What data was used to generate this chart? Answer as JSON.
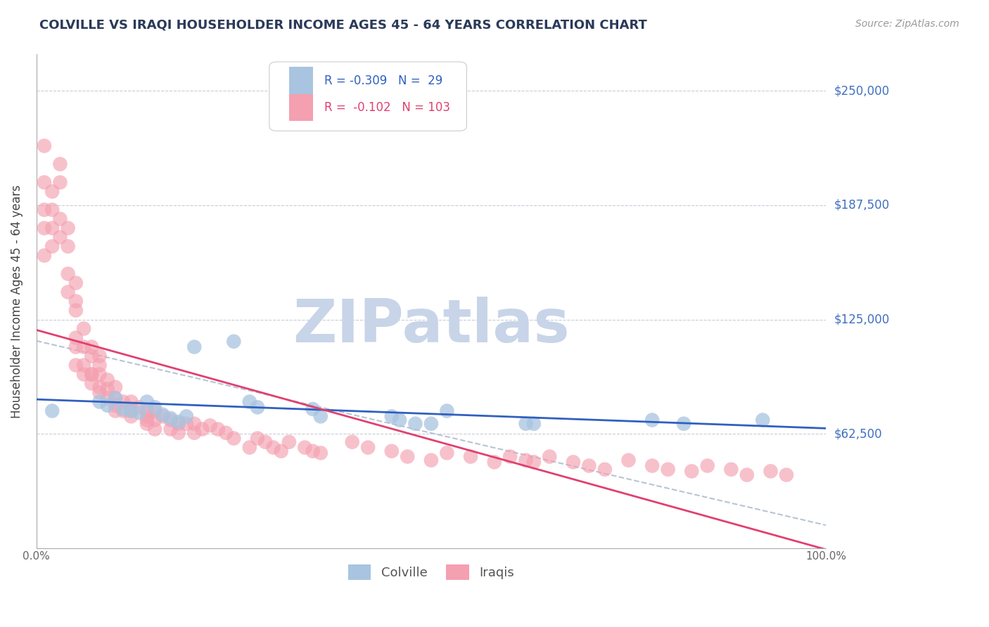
{
  "title": "COLVILLE VS IRAQI HOUSEHOLDER INCOME AGES 45 - 64 YEARS CORRELATION CHART",
  "source_text": "Source: ZipAtlas.com",
  "ylabel": "Householder Income Ages 45 - 64 years",
  "xlim": [
    0.0,
    1.0
  ],
  "ylim": [
    0,
    270000
  ],
  "yticks": [
    62500,
    125000,
    187500,
    250000
  ],
  "ytick_labels": [
    "$62,500",
    "$125,000",
    "$187,500",
    "$250,000"
  ],
  "xticks": [
    0.0,
    0.2,
    0.4,
    0.6,
    0.8,
    1.0
  ],
  "xtick_labels": [
    "0.0%",
    "",
    "",
    "",
    "",
    "100.0%"
  ],
  "colville_R": "-0.309",
  "colville_N": "29",
  "iraqi_R": "-0.102",
  "iraqi_N": "103",
  "colville_color": "#a8c4e0",
  "iraqi_color": "#f4a0b0",
  "colville_line_color": "#3060c0",
  "iraqi_line_color": "#e04070",
  "trend_line_color": "#b8c4d4",
  "watermark_color": "#c8d4e8",
  "colville_x": [
    0.02,
    0.08,
    0.09,
    0.1,
    0.11,
    0.12,
    0.13,
    0.14,
    0.15,
    0.16,
    0.17,
    0.18,
    0.19,
    0.2,
    0.25,
    0.27,
    0.28,
    0.35,
    0.36,
    0.45,
    0.46,
    0.48,
    0.5,
    0.52,
    0.62,
    0.63,
    0.78,
    0.82,
    0.92
  ],
  "colville_y": [
    75000,
    80000,
    78000,
    82000,
    76000,
    75000,
    74000,
    80000,
    77000,
    73000,
    71000,
    69000,
    72000,
    110000,
    113000,
    80000,
    77000,
    76000,
    72000,
    72000,
    70000,
    68000,
    68000,
    75000,
    68000,
    68000,
    70000,
    68000,
    70000
  ],
  "iraqi_x": [
    0.01,
    0.01,
    0.01,
    0.01,
    0.01,
    0.02,
    0.02,
    0.02,
    0.02,
    0.03,
    0.03,
    0.03,
    0.03,
    0.04,
    0.04,
    0.04,
    0.04,
    0.05,
    0.05,
    0.05,
    0.05,
    0.05,
    0.05,
    0.06,
    0.06,
    0.06,
    0.06,
    0.07,
    0.07,
    0.07,
    0.07,
    0.07,
    0.08,
    0.08,
    0.08,
    0.08,
    0.08,
    0.09,
    0.09,
    0.09,
    0.1,
    0.1,
    0.1,
    0.1,
    0.11,
    0.11,
    0.12,
    0.12,
    0.12,
    0.13,
    0.14,
    0.14,
    0.14,
    0.14,
    0.15,
    0.15,
    0.15,
    0.16,
    0.17,
    0.17,
    0.18,
    0.18,
    0.19,
    0.2,
    0.2,
    0.21,
    0.22,
    0.23,
    0.24,
    0.25,
    0.27,
    0.28,
    0.29,
    0.3,
    0.31,
    0.32,
    0.34,
    0.35,
    0.36,
    0.4,
    0.42,
    0.45,
    0.47,
    0.5,
    0.52,
    0.55,
    0.58,
    0.6,
    0.62,
    0.63,
    0.65,
    0.68,
    0.7,
    0.72,
    0.75,
    0.78,
    0.8,
    0.83,
    0.85,
    0.88,
    0.9,
    0.93,
    0.95
  ],
  "iraqi_y": [
    200000,
    185000,
    220000,
    175000,
    160000,
    195000,
    185000,
    175000,
    165000,
    210000,
    200000,
    180000,
    170000,
    175000,
    165000,
    150000,
    140000,
    135000,
    145000,
    130000,
    115000,
    110000,
    100000,
    120000,
    110000,
    100000,
    95000,
    95000,
    110000,
    105000,
    95000,
    90000,
    105000,
    100000,
    95000,
    88000,
    85000,
    92000,
    87000,
    82000,
    88000,
    82000,
    78000,
    75000,
    80000,
    75000,
    80000,
    75000,
    72000,
    77000,
    75000,
    72000,
    70000,
    68000,
    75000,
    70000,
    65000,
    72000,
    70000,
    65000,
    68000,
    63000,
    68000,
    68000,
    63000,
    65000,
    67000,
    65000,
    63000,
    60000,
    55000,
    60000,
    58000,
    55000,
    53000,
    58000,
    55000,
    53000,
    52000,
    58000,
    55000,
    53000,
    50000,
    48000,
    52000,
    50000,
    47000,
    50000,
    48000,
    47000,
    50000,
    47000,
    45000,
    43000,
    48000,
    45000,
    43000,
    42000,
    45000,
    43000,
    40000,
    42000,
    40000
  ]
}
